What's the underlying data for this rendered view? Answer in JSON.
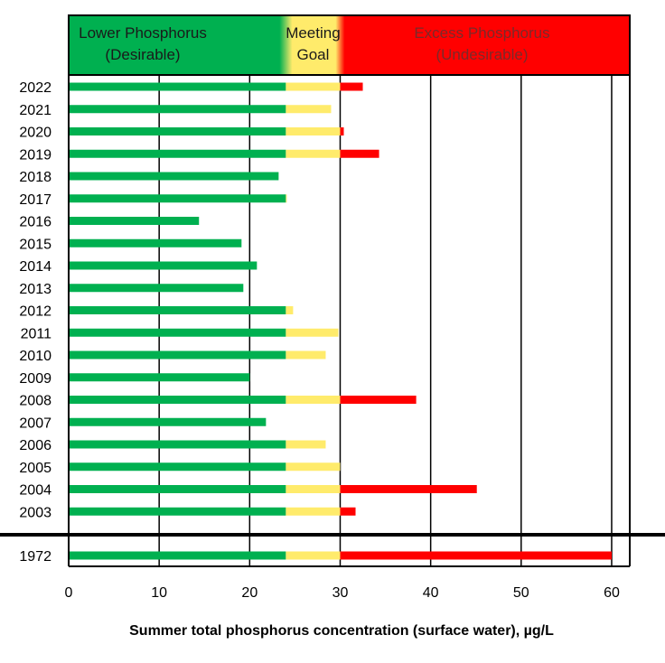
{
  "chart_data": {
    "type": "bar",
    "orientation": "horizontal",
    "xlabel": "Summer total phosphorus concentration (surface water), µg/L",
    "xlim": [
      0,
      62
    ],
    "xticks": [
      0,
      10,
      20,
      30,
      40,
      50,
      60
    ],
    "categories": [
      "2022",
      "2021",
      "2020",
      "2019",
      "2018",
      "2017",
      "2016",
      "2015",
      "2014",
      "2013",
      "2012",
      "2011",
      "2010",
      "2009",
      "2008",
      "2007",
      "2006",
      "2005",
      "2004",
      "2003",
      "1972"
    ],
    "values": [
      32.5,
      29,
      30.4,
      34.3,
      23.2,
      24.1,
      14.4,
      19.1,
      20.8,
      19.3,
      24.8,
      29.8,
      28.4,
      20.0,
      38.4,
      21.8,
      28.4,
      30.0,
      45.1,
      31.7,
      60.0
    ],
    "bands": [
      {
        "label_line1": "Lower Phosphorus",
        "label_line2": "(Desirable)",
        "from": 0,
        "to": 24,
        "color": "#00b050"
      },
      {
        "label_line1": "Meeting",
        "label_line2": "Goal",
        "from": 24,
        "to": 30,
        "color": "#ffeb6b"
      },
      {
        "label_line1": "Excess Phosphorus",
        "label_line2": "(Undesirable)",
        "from": 30,
        "to": 62,
        "color": "#ff0000"
      }
    ],
    "band_text_colors": {
      "desirable": "#1a1a1a",
      "goal": "#1a1a1a",
      "excess": "#7a2a2a"
    },
    "bar_colors": {
      "low": "#00b050",
      "goal": "#ffeb6b",
      "excess": "#ff0000"
    }
  }
}
